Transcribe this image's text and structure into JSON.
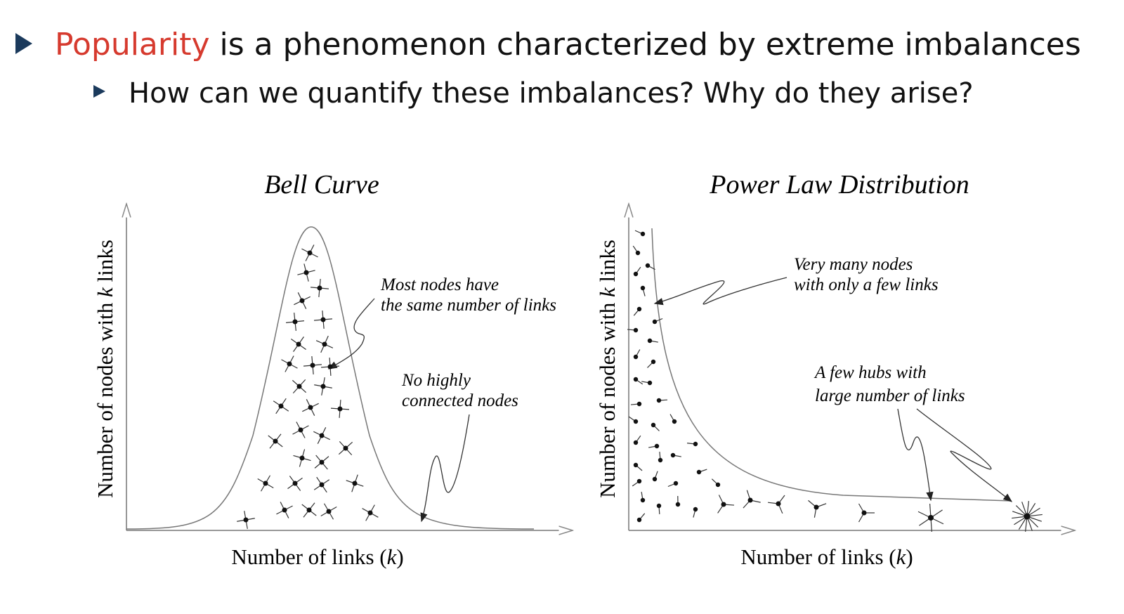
{
  "bullet": {
    "highlight": "Popularity",
    "text": "is a phenomenon characterized by extreme imbalances"
  },
  "sub_bullet": "How can we quantify these imbalances? Why do they arise?",
  "figures": [
    {
      "title": "Bell Curve",
      "y_label": [
        "Number of nodes with ",
        "k",
        " links"
      ],
      "x_label": [
        "Number of links (",
        "k",
        ")"
      ],
      "annotations": [
        [
          "Most nodes have",
          "the same number of links"
        ],
        [
          "No highly",
          "connected nodes"
        ]
      ]
    },
    {
      "title": "Power Law Distribution",
      "y_label": [
        "Number of nodes with ",
        "k",
        " links"
      ],
      "x_label": [
        "Number of links (",
        "k",
        ")"
      ],
      "annotations": [
        [
          "Very many nodes",
          "with only a few links"
        ],
        [
          "A few hubs with",
          "large number of links"
        ]
      ]
    }
  ]
}
